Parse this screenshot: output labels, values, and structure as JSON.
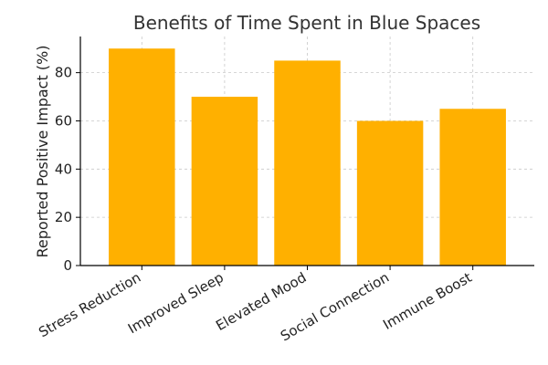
{
  "chart_data": {
    "type": "bar",
    "title": "Benefits of Time Spent in Blue Spaces",
    "xlabel": "",
    "ylabel": "Reported Positive Impact (%)",
    "categories": [
      "Stress Reduction",
      "Improved Sleep",
      "Elevated Mood",
      "Social Connection",
      "Immune Boost"
    ],
    "values": [
      90,
      70,
      85,
      60,
      65
    ],
    "ylim": [
      0,
      95
    ],
    "yticks": [
      0,
      20,
      40,
      60,
      80
    ],
    "bar_color": "#FFB000",
    "grid": true,
    "legend": "none"
  }
}
